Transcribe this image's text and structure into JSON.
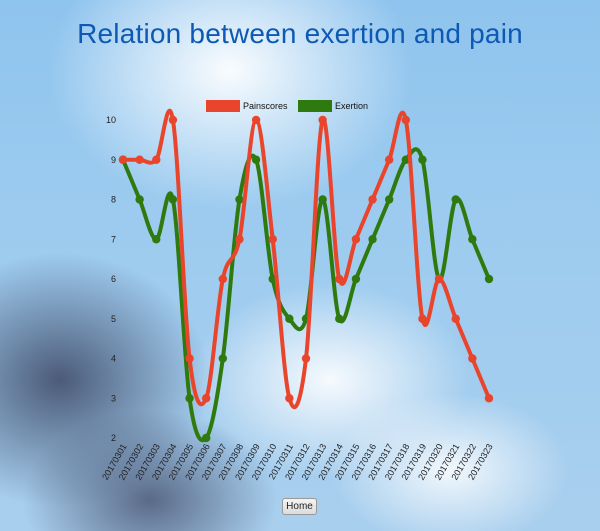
{
  "page": {
    "title": "Relation between exertion and pain"
  },
  "home_button": {
    "label": "Home"
  },
  "colors": {
    "title": "#0d59b3",
    "painscores": "#e8452c",
    "exertion": "#2f7a0e"
  },
  "chart_data": {
    "type": "line",
    "title": "Relation between exertion and pain",
    "xlabel": "",
    "ylabel": "",
    "ylim": [
      2,
      10
    ],
    "yticks": [
      2,
      3,
      4,
      5,
      6,
      7,
      8,
      9,
      10
    ],
    "legend_position": "top-center",
    "grid": false,
    "categories": [
      "20170301",
      "20170302",
      "20170303",
      "20170304",
      "20170305",
      "20170306",
      "20170307",
      "20170308",
      "20170309",
      "20170310",
      "20170311",
      "20170312",
      "20170313",
      "20170314",
      "20170315",
      "20170316",
      "20170317",
      "20170318",
      "20170319",
      "20170320",
      "20170321",
      "20170322",
      "20170323"
    ],
    "series": [
      {
        "name": "Painscores",
        "color": "#e8452c",
        "values": [
          9,
          9,
          9,
          10,
          4,
          3,
          6,
          7,
          10,
          7,
          3,
          4,
          10,
          6,
          7,
          8,
          9,
          10,
          5,
          6,
          5,
          4,
          3
        ]
      },
      {
        "name": "Exertion",
        "color": "#2f7a0e",
        "values": [
          9,
          8,
          7,
          8,
          3,
          2,
          4,
          8,
          9,
          6,
          5,
          5,
          8,
          5,
          6,
          7,
          8,
          9,
          9,
          6,
          8,
          7,
          6
        ]
      }
    ]
  }
}
